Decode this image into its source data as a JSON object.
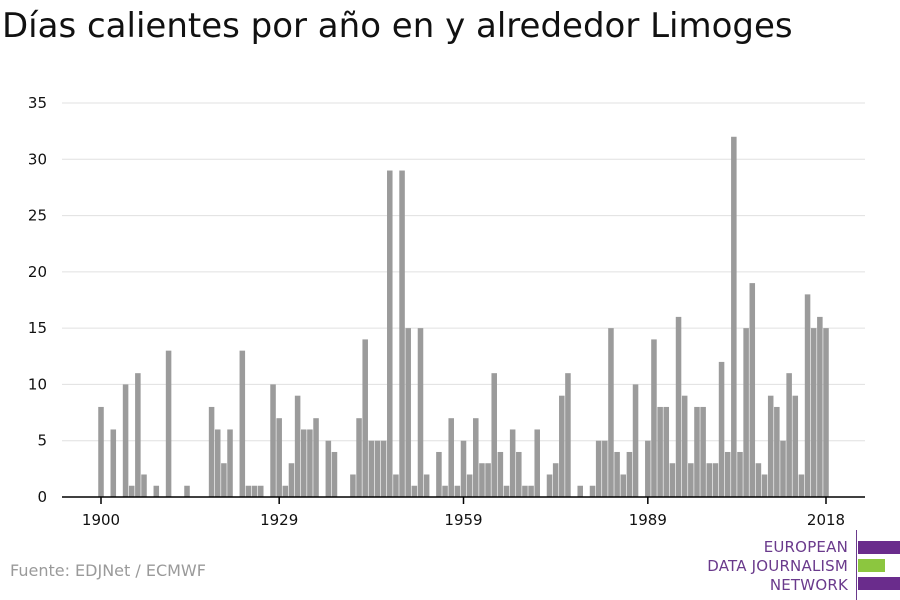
{
  "title": "Días calientes por año en y alrededor Limoges",
  "source": "Fuente: EDJNet / ECMWF",
  "logo": {
    "lines": [
      "EUROPEAN",
      "DATA JOURNALISM",
      "NETWORK"
    ],
    "colors": {
      "purple": "#6a2c8c",
      "green": "#8cc63f"
    }
  },
  "colors": {
    "bar": "#9b9b9b",
    "grid": "#e0e0e0",
    "axis": "#000000",
    "text": "#111111"
  },
  "chart_data": {
    "type": "bar",
    "title": "Días calientes por año en y alrededor Limoges",
    "xlabel": "",
    "ylabel": "",
    "ylim": [
      0,
      35
    ],
    "y_ticks": [
      0,
      5,
      10,
      15,
      20,
      25,
      30,
      35
    ],
    "x_ticks": [
      1900,
      1929,
      1959,
      1989,
      2018
    ],
    "grid": true,
    "legend": "none",
    "x": [
      1900,
      1901,
      1902,
      1903,
      1904,
      1905,
      1906,
      1907,
      1908,
      1909,
      1910,
      1911,
      1912,
      1913,
      1914,
      1915,
      1916,
      1917,
      1918,
      1919,
      1920,
      1921,
      1922,
      1923,
      1924,
      1925,
      1926,
      1927,
      1928,
      1929,
      1930,
      1931,
      1932,
      1933,
      1934,
      1935,
      1936,
      1937,
      1938,
      1939,
      1940,
      1941,
      1942,
      1943,
      1944,
      1945,
      1946,
      1947,
      1948,
      1949,
      1950,
      1951,
      1952,
      1953,
      1954,
      1955,
      1956,
      1957,
      1958,
      1959,
      1960,
      1961,
      1962,
      1963,
      1964,
      1965,
      1966,
      1967,
      1968,
      1969,
      1970,
      1971,
      1972,
      1973,
      1974,
      1975,
      1976,
      1977,
      1978,
      1979,
      1980,
      1981,
      1982,
      1983,
      1984,
      1985,
      1986,
      1987,
      1988,
      1989,
      1990,
      1991,
      1992,
      1993,
      1994,
      1995,
      1996,
      1997,
      1998,
      1999,
      2000,
      2001,
      2002,
      2003,
      2004,
      2005,
      2006,
      2007,
      2008,
      2009,
      2010,
      2011,
      2012,
      2013,
      2014,
      2015,
      2016,
      2017,
      2018
    ],
    "values": [
      8,
      0,
      6,
      0,
      10,
      1,
      11,
      2,
      0,
      1,
      0,
      13,
      0,
      0,
      1,
      0,
      0,
      0,
      8,
      6,
      3,
      6,
      0,
      13,
      1,
      1,
      1,
      0,
      10,
      7,
      1,
      3,
      9,
      6,
      6,
      7,
      0,
      5,
      4,
      0,
      0,
      2,
      7,
      14,
      5,
      5,
      5,
      29,
      2,
      29,
      15,
      1,
      15,
      2,
      0,
      4,
      1,
      7,
      1,
      5,
      2,
      7,
      3,
      3,
      11,
      4,
      1,
      6,
      4,
      1,
      1,
      6,
      0,
      2,
      3,
      9,
      11,
      0,
      1,
      0,
      1,
      5,
      5,
      15,
      4,
      2,
      4,
      10,
      0,
      5,
      14,
      8,
      8,
      3,
      16,
      9,
      3,
      8,
      8,
      3,
      3,
      12,
      4,
      32,
      4,
      15,
      19,
      3,
      2,
      9,
      8,
      5,
      11,
      9,
      2,
      18,
      15,
      16,
      15
    ]
  }
}
